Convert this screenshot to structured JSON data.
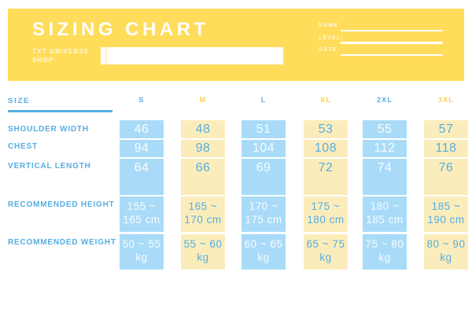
{
  "header": {
    "title": "SIZING CHART",
    "shop_label": "TXT UNIVERSE\nSHOP",
    "input_value": "",
    "fields": [
      {
        "label": "NAME:"
      },
      {
        "label": "LEVEL:"
      },
      {
        "label": "DATE:"
      }
    ]
  },
  "table": {
    "size_header": "SIZE",
    "columns": [
      {
        "label": "S",
        "accent": "blue"
      },
      {
        "label": "M",
        "accent": "yellow"
      },
      {
        "label": "L",
        "accent": "blue"
      },
      {
        "label": "XL",
        "accent": "yellow"
      },
      {
        "label": "2XL",
        "accent": "blue"
      },
      {
        "label": "3XL",
        "accent": "yellow"
      }
    ],
    "rows": [
      {
        "label": "SHOULDER WIDTH",
        "values": [
          "46",
          "48",
          "51",
          "53",
          "55",
          "57"
        ]
      },
      {
        "label": "CHEST",
        "values": [
          "94",
          "98",
          "104",
          "108",
          "112",
          "118"
        ]
      },
      {
        "label": "VERTICAL LENGTH",
        "values": [
          "64",
          "66",
          "69",
          "72",
          "74",
          "76"
        ]
      },
      {
        "label": "RECOMMENDED HEIGHT",
        "values": [
          "155 ~\n165 cm",
          "165 ~\n170 cm",
          "170 ~\n175 cm",
          "175 ~\n180 cm",
          "180 ~\n185 cm",
          "185 ~\n190 cm"
        ]
      },
      {
        "label": "RECOMMENDED WEIGHT",
        "values": [
          "50 ~ 55\nkg",
          "55 ~ 60\nkg",
          "60 ~ 65\nkg",
          "65 ~ 75\nkg",
          "75 ~ 80\nkg",
          "80 ~ 90\nkg"
        ]
      }
    ]
  },
  "colors": {
    "header_bg": "#ffdc5a",
    "cell_blue": "#a9dbf8",
    "cell_yellow": "#fbedbb",
    "text_blue": "#55aee2",
    "accent_yellow": "#fbd14e",
    "white": "#ffffff"
  }
}
